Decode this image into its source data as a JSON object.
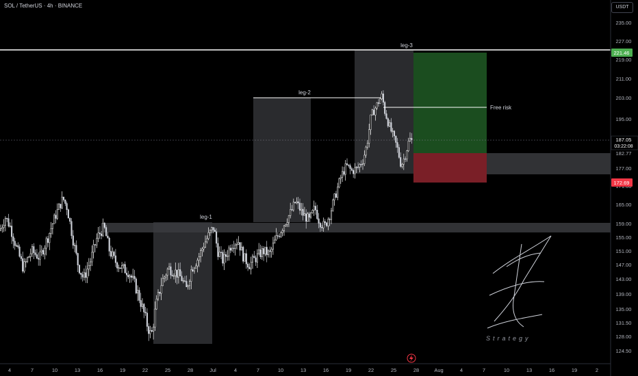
{
  "header": {
    "symbol": "SOL / TetherUS · 4h · BINANCE",
    "currency": "USDT"
  },
  "colors": {
    "background": "#000000",
    "bull_candle": "#ffffff",
    "bear_candle": "#d1d4dc",
    "zone_fill": "#2a2b2e",
    "target_fill": "#1b4d1f",
    "stop_fill": "#7a1f27",
    "target_label": "#4caf50",
    "stop_label": "#f23645",
    "line_color": "#ffffff",
    "axis_text": "#b2b5be"
  },
  "chart_data": {
    "type": "candlestick",
    "symbol": "SOL / TetherUS",
    "timeframe": "4h",
    "exchange": "BINANCE",
    "y_axis": {
      "ticks": [
        124.5,
        128.0,
        131.5,
        135.0,
        139.0,
        143.0,
        147.0,
        151.0,
        155.0,
        159.0,
        165.0,
        171.0,
        177.0,
        182.77,
        187.05,
        195.0,
        203.0,
        211.0,
        219.0,
        227.0,
        235.0
      ],
      "tick_labels": [
        "124.50",
        "128.00",
        "131.50",
        "135.00",
        "139.00",
        "143.00",
        "147.00",
        "151.00",
        "155.00",
        "159.00",
        "165.00",
        "171.00",
        "177.00",
        "182.77",
        "187.05",
        "195.00",
        "203.00",
        "211.00",
        "219.00",
        "227.00",
        "235.00"
      ]
    },
    "x_axis": {
      "tick_labels": [
        "4",
        "7",
        "10",
        "13",
        "16",
        "19",
        "22",
        "25",
        "28",
        "Jul",
        "4",
        "7",
        "10",
        "13",
        "16",
        "19",
        "22",
        "25",
        "28",
        "Aug",
        "4",
        "7",
        "10",
        "13",
        "16",
        "19",
        "2"
      ]
    },
    "price_levels": {
      "current_price": "187.05",
      "countdown": "03:22:08",
      "target_price": "221.46",
      "stop_price": "172.69",
      "entry_price": "182.77"
    },
    "price_path": [
      [
        0,
        157
      ],
      [
        8,
        161
      ],
      [
        15,
        158
      ],
      [
        24,
        152
      ],
      [
        34,
        146
      ],
      [
        46,
        151
      ],
      [
        58,
        149
      ],
      [
        70,
        155
      ],
      [
        82,
        162
      ],
      [
        92,
        167
      ],
      [
        98,
        164
      ],
      [
        106,
        155
      ],
      [
        114,
        147
      ],
      [
        122,
        143
      ],
      [
        132,
        148
      ],
      [
        142,
        155
      ],
      [
        152,
        158
      ],
      [
        160,
        151
      ],
      [
        168,
        148
      ],
      [
        178,
        146
      ],
      [
        188,
        145
      ],
      [
        198,
        141
      ],
      [
        207,
        136
      ],
      [
        215,
        131
      ],
      [
        221,
        128
      ],
      [
        228,
        136
      ],
      [
        236,
        142
      ],
      [
        246,
        146
      ],
      [
        256,
        145
      ],
      [
        266,
        143
      ],
      [
        272,
        140
      ],
      [
        280,
        146
      ],
      [
        290,
        149
      ],
      [
        298,
        153
      ],
      [
        306,
        156
      ],
      [
        312,
        158
      ],
      [
        318,
        151
      ],
      [
        326,
        148
      ],
      [
        338,
        153
      ],
      [
        348,
        154
      ],
      [
        356,
        149
      ],
      [
        364,
        147
      ],
      [
        374,
        149
      ],
      [
        384,
        151
      ],
      [
        394,
        150
      ],
      [
        402,
        154
      ],
      [
        410,
        157
      ],
      [
        418,
        160
      ],
      [
        426,
        163
      ],
      [
        432,
        166
      ],
      [
        442,
        162
      ],
      [
        452,
        160
      ],
      [
        460,
        164
      ],
      [
        466,
        160
      ],
      [
        474,
        158
      ],
      [
        482,
        162
      ],
      [
        490,
        168
      ],
      [
        498,
        174
      ],
      [
        506,
        178
      ],
      [
        514,
        176
      ],
      [
        522,
        177
      ],
      [
        530,
        180
      ],
      [
        536,
        186
      ],
      [
        542,
        196
      ],
      [
        548,
        199
      ],
      [
        554,
        202
      ],
      [
        558,
        204
      ],
      [
        562,
        198
      ],
      [
        568,
        193
      ],
      [
        574,
        189
      ],
      [
        580,
        185
      ],
      [
        586,
        178
      ],
      [
        592,
        182
      ],
      [
        598,
        188
      ],
      [
        602,
        187
      ]
    ],
    "annotations": {
      "leg_1": "leg-1",
      "leg_2": "leg-2",
      "leg_3": "leg-3",
      "free_risk": "Free risk",
      "leg_1_price": 159,
      "leg_2_price": 203,
      "leg_3_price": 222,
      "free_risk_price": 200,
      "zone_1_top": 159,
      "zone_1_bottom": 157,
      "zone_2_top": 183,
      "zone_2_bottom": 176
    },
    "watermark": "Strategy",
    "watermark_logo": "Z"
  }
}
